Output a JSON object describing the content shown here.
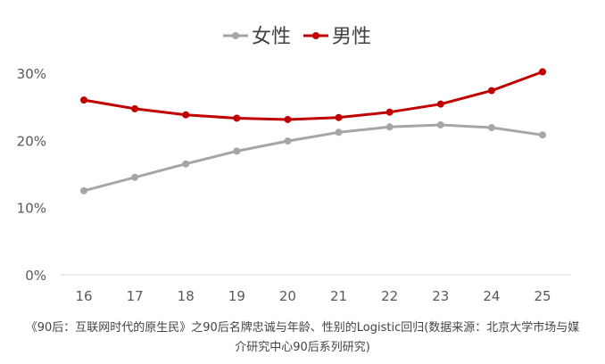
{
  "chart_data": {
    "type": "line",
    "x": [
      16,
      17,
      18,
      19,
      20,
      21,
      22,
      23,
      24,
      25
    ],
    "y_ticks": [
      "0%",
      "10%",
      "20%",
      "30%"
    ],
    "ylim": [
      0,
      0.3
    ],
    "grid": false,
    "legend_position": "top-center",
    "series": [
      {
        "name": "女性",
        "color": "#a6a6a6",
        "values": [
          0.125,
          0.145,
          0.165,
          0.184,
          0.199,
          0.212,
          0.22,
          0.223,
          0.219,
          0.208
        ]
      },
      {
        "name": "男性",
        "color": "#c00000",
        "values": [
          0.26,
          0.247,
          0.238,
          0.233,
          0.231,
          0.234,
          0.242,
          0.254,
          0.274,
          0.302
        ]
      }
    ]
  },
  "caption": {
    "line1": "《90后：互联网时代的原生民》之90后名牌忠诚与年龄、性别的Logistic回归(数据来源：北京大学市场与媒",
    "line2": "介研究中心90后系列研究)"
  }
}
